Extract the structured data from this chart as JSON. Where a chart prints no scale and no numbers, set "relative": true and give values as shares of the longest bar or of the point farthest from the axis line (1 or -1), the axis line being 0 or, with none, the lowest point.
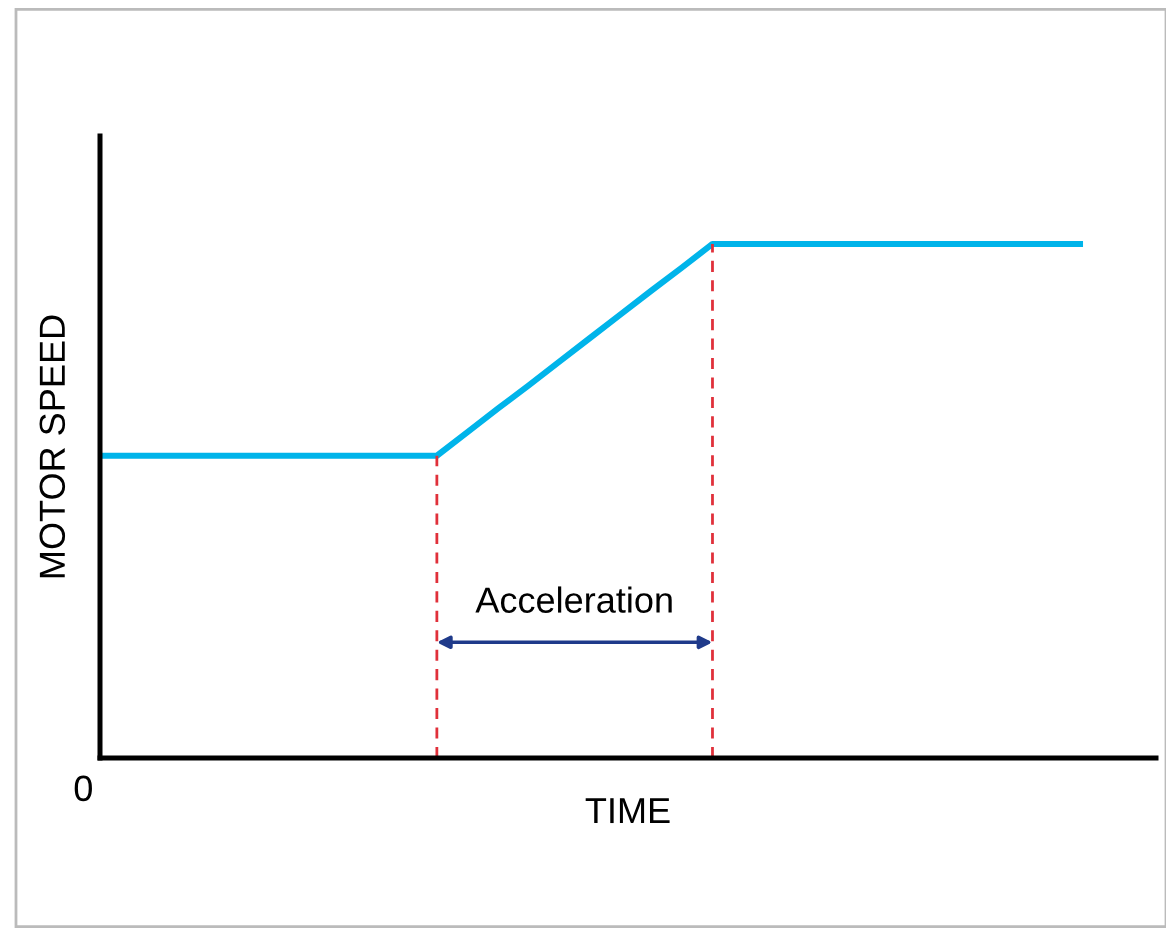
{
  "chart_data": {
    "type": "line",
    "relative": true,
    "xlabel": "TIME",
    "ylabel": "MOTOR SPEED",
    "categories": [
      null,
      null,
      null,
      null,
      null,
      null,
      null,
      null,
      null,
      null,
      null,
      null,
      null,
      null,
      null,
      null,
      null,
      null,
      null,
      null,
      null,
      null,
      null,
      null,
      null,
      null,
      null,
      null,
      null,
      null,
      null,
      null,
      null
    ],
    "series": [
      {
        "color": "#00b4ea",
        "values": [
          0.588,
          0.588,
          0.588,
          0.588,
          0.588,
          0.588,
          0.588,
          0.588,
          0.588,
          0.588,
          0.588,
          0.588,
          0.634,
          0.68,
          0.725,
          0.771,
          0.817,
          0.863,
          0.909,
          0.954,
          1,
          1,
          1,
          1,
          1,
          1,
          1,
          1,
          1,
          1,
          1,
          1,
          1
        ]
      }
    ],
    "annotations": [
      "Acceleration",
      "0"
    ],
    "legend": false,
    "marker": "none",
    "line_style": "solid"
  }
}
